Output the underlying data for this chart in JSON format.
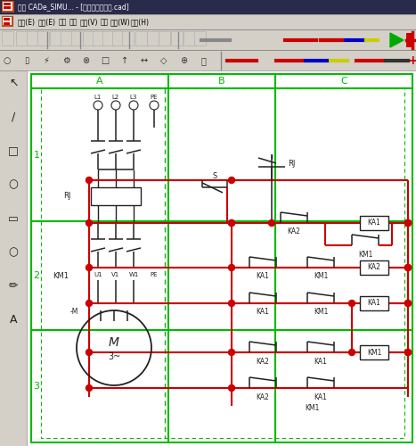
{
  "title_bar": "关于 CADe_SIMU... - [单按鈕启停电路.cad]",
  "menu_items": [
    "文件(E)",
    "编辑(E)",
    "绘图",
    "模拟",
    "查看(V)",
    "显示",
    "窗口(W)",
    "帮助(H)"
  ],
  "bg_color": "#c0c0c0",
  "title_bg": "#1a1a2e",
  "toolbar_bg": "#d4d0c8",
  "canvas_bg": "#f0f0f0",
  "grid_color": "#00bb00",
  "wire_red": "#cc0000",
  "wire_black": "#222222",
  "dot_green": "#009900"
}
